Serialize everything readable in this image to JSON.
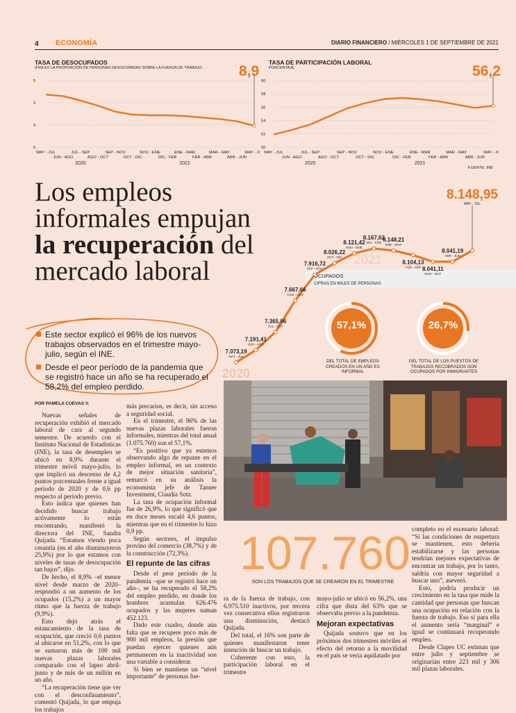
{
  "header": {
    "page_number": "4",
    "section": "ECONOMÍA",
    "publication": "DIARIO FINANCIERO",
    "date": "/ MIÉRCOLES 1 DE SEPTIEMBRE DE 2021"
  },
  "chart_data": [
    {
      "type": "line",
      "title": "TASA DE DESOCUPADOS",
      "subtitle": "IFRA ES LA PROPORCIÓN DE PERSONAS DESOCUPADAS SOBRE LA FUERZA DE TRABAJO.",
      "highlight_value": "8,9",
      "y_ticks": [
        "5",
        "2",
        "9",
        "6"
      ],
      "ylim": [
        6,
        15
      ],
      "x_labels_top": [
        "MAY - JUL",
        "JUL - SEP",
        "SEP - NOV",
        "NOV - ENE",
        "ENE - MAR",
        "MAR - MAY",
        "MAY - JUL"
      ],
      "x_labels_bottom": [
        "JUN - AGO",
        "AGO - OCT",
        "OCT - DIC",
        "DIC - FEB",
        "FEB - ABR",
        "ABR - JUN"
      ],
      "years": [
        "2020",
        "2021"
      ],
      "values": [
        13.1,
        12.9,
        12.3,
        11.6,
        10.8,
        10.4,
        10.3,
        10.3,
        10.2,
        10.0,
        9.8,
        9.5,
        8.9
      ],
      "source": ""
    },
    {
      "type": "line",
      "title": "TASA DE PARTICIPACIÓN LABORAL",
      "subtitle": "PORCENTAJE",
      "highlight_value": "56,2",
      "y_ticks": [
        "60",
        "58",
        "56",
        "54",
        "52",
        "50"
      ],
      "ylim": [
        50,
        60
      ],
      "x_labels_top": [
        "MAY - JUL",
        "JUL - SEP",
        "SEP - NOV",
        "NOV - ENE",
        "ENE - MAR",
        "MAR - MAY",
        "MAY - JUL"
      ],
      "x_labels_bottom": [
        "JUN - AGO",
        "AGO - OCT",
        "OCT - DIC",
        "DIC - FEB",
        "FEB - ABR",
        "ABR - JUN"
      ],
      "years": [
        "2020",
        "2021"
      ],
      "values": [
        51.9,
        52.6,
        53.4,
        54.6,
        55.8,
        56.6,
        57.2,
        57.4,
        57.2,
        56.9,
        56.4,
        55.9,
        56.2
      ],
      "source": "FUENTE: INE"
    },
    {
      "type": "line",
      "title": "OCUPADOS",
      "subtitle": "CIFRAS EN MILES DE PERSONAS",
      "highlight_value": "8.148,95",
      "highlight_label": "MAY - JUL",
      "year_watermarks": [
        "2020",
        "2021"
      ],
      "points": [
        {
          "value": 7073.19,
          "label": "7.073,19",
          "period": "MAY - JUL"
        },
        {
          "value": 7191.41,
          "label": "7.191,41",
          "period": "JUN - AGO"
        },
        {
          "value": 7365.06,
          "label": "7.365,06",
          "period": "JUL - SEP"
        },
        {
          "value": 7667.66,
          "label": "7.667,66",
          "period": "AGO - OCT"
        },
        {
          "value": 7916.72,
          "label": "7.916,72",
          "period": "SEP - NOV"
        },
        {
          "value": 8026.22,
          "label": "8.026,22",
          "period": "OCT - DIC"
        },
        {
          "value": 8121.42,
          "label": "8.121,42",
          "period": "NOV - ENE"
        },
        {
          "value": 8167.62,
          "label": "8.167,62",
          "period": "DIC - FEB"
        },
        {
          "value": 8148.21,
          "label": "8.148,21",
          "period": "ENE - MAR"
        },
        {
          "value": 8104.13,
          "label": "8.104,13",
          "period": "FEB - ABR"
        },
        {
          "value": 8041.11,
          "label": "8.041,11",
          "period": "MAR - MAY"
        },
        {
          "value": 8041.19,
          "label": "8.041,19",
          "period": "ABR - JUN"
        },
        {
          "value": 8148.95,
          "label": "8.148,95",
          "period": "MAY - JUL"
        }
      ],
      "donuts": [
        {
          "value": 57.1,
          "label": "57,1%",
          "caption": "DEL TOTAL DE EMPLEOS CREADOS EN UN AÑO ES INFORMAL"
        },
        {
          "value": 26.7,
          "label": "26,7%",
          "caption": "DEL TOTAL DE LOS PUESTOS DE TRABAJOS RECOBRADOS SON OCUPADOS POR INMIGRANTES"
        }
      ]
    }
  ],
  "article": {
    "headline_line1": "Los empleos",
    "headline_line2": "informales empujan",
    "headline_bold": "la recuperación",
    "headline_line3_rest": " del",
    "headline_line4": "mercado laboral",
    "bullets": [
      "Este sector explicó el 96% de los nuevos trabajos observados en el trimestre mayo-julio, según el INE.",
      "Desde el peor período de la pandemia que se registró hace un año se ha recuperado el 58,2% del empleo perdido."
    ],
    "byline": "POR PAMELA CUEVAS V.",
    "col1": [
      "Nuevas señales de recuperación exhibió el mercado laboral de cara al segundo semestre. De acuerdo con el Instituto Nacional de Estadísticas (INE), la tasa de desempleo se ubicó en 8,9% durante el trimestre móvil mayo-julio, lo que implicó un descenso de 4,2 puntos porcentuales frente a igual periodo de 2020 y de 0,6 pp respecto al período previo.",
      "Esto indica que quienes han decidido buscar trabajo activamente lo están encontrando, manifestó la directora del INE, Sandra Quijada. “Estamos viendo poca cesantía (en el año disminuyeron 25,9%) por lo que estamos con niveles de tasas de desocupación tan bajos”, dijo.",
      "De hecho, el 8,9% –el menor nivel desde marzo de 2020– respondió a un aumento de los ocupados (15,2%) a un mayor ritmo que la fuerza de trabajo (9,9%).",
      "Esto dejó atrás el estancamiento de la tasa de ocupación, que creció 0,6 puntos al ubicarse en 51,2%, con lo que se sumaron más de 100 mil nuevas plazas laborales comparado con el lapso abril-junio y de más de un millón en un año.",
      "“La recuperación tiene que ver con el desconfinamiento”, comentó Quijada, lo que empuja los trabajos"
    ],
    "col2_intro": "más precarios, es decir, sin acceso a seguridad social.",
    "col2": [
      "En el trimestre, el 96% de las nuevas plazas laborales fueron informales, mientras del total anual (1.075.760) son el 57,1%.",
      "“Es positivo que ya estemos observando algo de repunte en el empleo informal, en un contexto de mejor situación sanitaria”, remarcó en su análisis la economista jefe de Tanner Investment, Claudia Sotz.",
      "La tasa de ocupación informal fue de 26,9%, lo que significó que en doce meses escaló 4,6 puntos, mientras que en el trimestre lo hizo 0,9 pp.",
      "Según sectores, el impulso provino del comercio (38,7%) y de la construcción (72,3%)."
    ],
    "subhead1": "El repunte de las cifras",
    "col2b": [
      "Desde el peor período de la pandemia –que se registró hace un año–, se ha recuperado el 58,2% del empleo perdido, en donde los hombres acumulan 626.476 ocupados y las mujeres suman 452.123.",
      "Dado este cuadro, donde aún falta que se recupere poco más de 900 mil empleos, la presión que puedan ejercer quienes aún permanecen en la inactividad son una variable a considerar.",
      "Si bien se mantiene un “nivel importante” de personas fue-"
    ],
    "col3": [
      "ra de la fuerza de trabajo, con 6.975.510 inactivos, por tercera vez consecutiva ellos registraron una disminución, destacó Quijada.",
      "Del total, el 16% son parte de quienes manifestaron tener intención de buscar un trabajo.",
      "Coherente con esto, la participación laboral en el trimestre"
    ],
    "col4": [
      "mayo-julio se ubicó en 56,2%, una cifra que dista del 63% que se observaba previo a la pandemia."
    ],
    "subhead2": "Mejoran expectativas",
    "col4b": [
      "Quijada sostuvo que en los próximos dos trimestres móviles el efecto del retorno a la movilidad en el país se vería aquilatado por"
    ],
    "col5": [
      "completo en el escenario laboral: “Si las condiciones de reapertura se mantienen, esto debería estabilizarse y las personas tendrían mejores expectativas de encontrar un trabajo, por lo tanto, saldría con mayor seguridad a buscar uno”, aseveró.",
      "Esto, podría producir un crecimiento en la tasa que mide la cantidad que personas que buscan una ocupación en relación con la fuerza de trabajo. Eso sí para ella el aumento sería “marginal” e igual se continuará recuperando empleo.",
      "Desde Clapes UC estiman que entre julio y septiembre se originarían entre 223 mil y 306 mil plazas laborales."
    ],
    "big_stat": "107.760",
    "big_stat_caption": "SON LOS TRABAJOS QUE SE CREARON EN EL TRIMESTRE"
  },
  "colors": {
    "accent": "#e87722",
    "background": "#f8e4da",
    "text": "#231f20"
  }
}
